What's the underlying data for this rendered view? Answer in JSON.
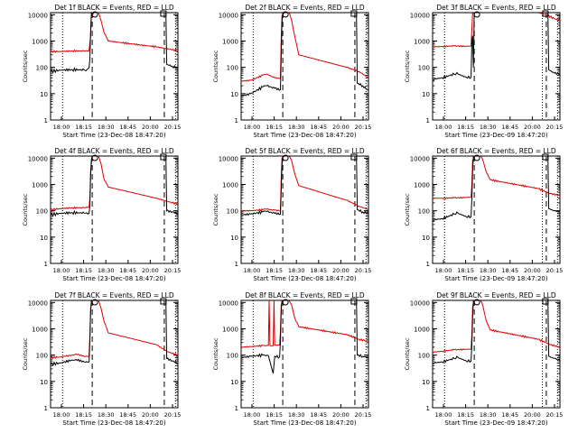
{
  "chart_data": [
    {
      "type": "line",
      "title": "Det 1f BLACK = Events, RED = LLD",
      "xlabel": "Start Time (23-Dec-08 18:47:20)",
      "ylabel": "Counts/sec",
      "yscale": "log",
      "ylim": [
        1,
        12000
      ],
      "xlim": [
        "17:48",
        "20:27"
      ],
      "xticks": [
        "18:00",
        "18:15",
        "18:30",
        "18:45",
        "20:00",
        "20:15"
      ],
      "yticks": [
        "1",
        "10",
        "100",
        "1000",
        "10000"
      ],
      "dotted_lines": [
        "18:03",
        "20:24"
      ],
      "dashed_lines": [
        "18:40",
        "20:10"
      ],
      "series": [
        {
          "name": "BLACK",
          "color": "#000000",
          "x": [
            "17:48",
            "18:00",
            "18:15",
            "18:30",
            "18:34",
            "18:36",
            "18:37",
            "18:38",
            "18:39",
            "18:40",
            "18:42",
            "18:45",
            "18:50",
            "19:20",
            "20:00",
            "20:12",
            "20:13",
            "20:20",
            "20:27"
          ],
          "y": [
            70,
            78,
            82,
            80,
            85,
            95,
            200,
            2000,
            12000,
            12000,
            12000,
            12000,
            12000,
            12000,
            12000,
            12000,
            130,
            110,
            95
          ]
        },
        {
          "name": "RED",
          "color": "#dd0000",
          "x": [
            "17:48",
            "18:00",
            "18:15",
            "18:30",
            "18:36",
            "18:38",
            "18:39",
            "18:42",
            "18:45",
            "18:48",
            "18:51",
            "18:55",
            "19:00",
            "20:00",
            "20:15",
            "20:27"
          ],
          "y": [
            400,
            400,
            420,
            420,
            430,
            1500,
            9000,
            12000,
            12000,
            12000,
            6000,
            2000,
            1000,
            600,
            500,
            430
          ]
        }
      ]
    },
    {
      "type": "line",
      "title": "Det 2f BLACK = Events, RED = LLD",
      "xlabel": "Start Time (23-Dec-08 18:47:20)",
      "ylabel": "Counts/sec",
      "yscale": "log",
      "ylim": [
        1,
        12000
      ],
      "xlim": [
        "17:48",
        "20:27"
      ],
      "xticks": [
        "18:00",
        "18:15",
        "18:30",
        "18:45",
        "20:00",
        "20:15"
      ],
      "yticks": [
        "1",
        "10",
        "100",
        "1000",
        "10000"
      ],
      "dotted_lines": [
        "18:03",
        "20:24"
      ],
      "dashed_lines": [
        "18:40",
        "20:10"
      ],
      "series": [
        {
          "name": "BLACK",
          "color": "#000000",
          "x": [
            "17:48",
            "18:00",
            "18:15",
            "18:20",
            "18:30",
            "18:37",
            "18:38",
            "18:39",
            "18:40",
            "18:45",
            "19:20",
            "20:00",
            "20:12",
            "20:13",
            "20:20",
            "20:27"
          ],
          "y": [
            8,
            10,
            18,
            20,
            16,
            14,
            200,
            5000,
            12000,
            12000,
            12000,
            12000,
            12000,
            25,
            20,
            13
          ]
        },
        {
          "name": "RED",
          "color": "#dd0000",
          "x": [
            "17:48",
            "18:00",
            "18:15",
            "18:20",
            "18:30",
            "18:37",
            "18:38",
            "18:39",
            "18:42",
            "18:48",
            "18:51",
            "18:55",
            "19:00",
            "20:00",
            "20:15",
            "20:27"
          ],
          "y": [
            30,
            32,
            50,
            55,
            40,
            38,
            1000,
            9000,
            12000,
            12000,
            6000,
            1500,
            300,
            100,
            70,
            40
          ]
        }
      ]
    },
    {
      "type": "line",
      "title": "Det 3f BLACK = Events, RED = LLD",
      "xlabel": "Start Time (23-Dec-09 18:47:20)",
      "ylabel": "Counts/sec",
      "yscale": "log",
      "ylim": [
        1,
        12000
      ],
      "xlim": [
        "17:48",
        "20:27"
      ],
      "xticks": [
        "18:00",
        "18:15",
        "18:30",
        "18:45",
        "20:00",
        "20:15"
      ],
      "yticks": [
        "1",
        "10",
        "100",
        "1000",
        "10000"
      ],
      "dotted_lines": [
        "18:03",
        "20:05",
        "20:24"
      ],
      "dashed_lines": [
        "18:40",
        "20:10"
      ],
      "series": [
        {
          "name": "BLACK",
          "color": "#000000",
          "x": [
            "17:48",
            "18:00",
            "18:15",
            "18:20",
            "18:30",
            "18:36",
            "18:37",
            "18:38",
            "18:39",
            "18:40",
            "18:45",
            "19:20",
            "20:00",
            "20:12",
            "20:13",
            "20:20",
            "20:27"
          ],
          "y": [
            35,
            40,
            55,
            55,
            42,
            42,
            1000,
            1600,
            100,
            12000,
            12000,
            12000,
            12000,
            12000,
            80,
            60,
            55
          ]
        },
        {
          "name": "RED",
          "color": "#dd0000",
          "x": [
            "17:48",
            "18:00",
            "18:15",
            "18:30",
            "18:36",
            "18:38",
            "18:40",
            "18:45",
            "19:20",
            "20:00",
            "20:10",
            "20:20",
            "20:27"
          ],
          "y": [
            600,
            620,
            650,
            630,
            650,
            11000,
            12000,
            12000,
            12000,
            12000,
            10000,
            7000,
            6000
          ]
        }
      ]
    },
    {
      "type": "line",
      "title": "Det 4f BLACK = Events, RED = LLD",
      "xlabel": "Start Time (23-Dec-08 18:47:20)",
      "ylabel": "Counts/sec",
      "yscale": "log",
      "ylim": [
        1,
        12000
      ],
      "xlim": [
        "17:48",
        "20:27"
      ],
      "xticks": [
        "18:00",
        "18:15",
        "18:30",
        "18:45",
        "20:00",
        "20:15"
      ],
      "yticks": [
        "1",
        "10",
        "100",
        "1000",
        "10000"
      ],
      "dotted_lines": [
        "18:03",
        "20:24"
      ],
      "dashed_lines": [
        "18:40",
        "20:10"
      ],
      "series": [
        {
          "name": "BLACK",
          "color": "#000000",
          "x": [
            "17:48",
            "18:00",
            "18:15",
            "18:30",
            "18:36",
            "18:37",
            "18:38",
            "18:39",
            "18:40",
            "18:45",
            "19:20",
            "20:00",
            "20:12",
            "20:13",
            "20:20",
            "20:27"
          ],
          "y": [
            70,
            80,
            85,
            82,
            80,
            150,
            2000,
            9000,
            12000,
            12000,
            12000,
            12000,
            12000,
            100,
            90,
            80
          ]
        },
        {
          "name": "RED",
          "color": "#dd0000",
          "x": [
            "17:48",
            "18:00",
            "18:15",
            "18:30",
            "18:36",
            "18:37",
            "18:38",
            "18:40",
            "18:45",
            "18:48",
            "18:51",
            "18:55",
            "19:00",
            "20:00",
            "20:15",
            "20:27"
          ],
          "y": [
            110,
            120,
            130,
            130,
            140,
            300,
            3000,
            12000,
            12000,
            12000,
            6000,
            1500,
            800,
            300,
            220,
            180
          ]
        }
      ]
    },
    {
      "type": "line",
      "title": "Det 5f BLACK = Events, RED = LLD",
      "xlabel": "Start Time (23-Dec-08 18:47:20)",
      "ylabel": "Counts/sec",
      "yscale": "log",
      "ylim": [
        1,
        12000
      ],
      "xlim": [
        "17:48",
        "20:27"
      ],
      "xticks": [
        "18:00",
        "18:15",
        "18:30",
        "18:45",
        "20:00",
        "20:15"
      ],
      "yticks": [
        "1",
        "10",
        "100",
        "1000",
        "10000"
      ],
      "dotted_lines": [
        "18:03",
        "20:24"
      ],
      "dashed_lines": [
        "18:40",
        "20:10"
      ],
      "series": [
        {
          "name": "BLACK",
          "color": "#000000",
          "x": [
            "17:48",
            "18:00",
            "18:15",
            "18:20",
            "18:30",
            "18:37",
            "18:38",
            "18:39",
            "18:40",
            "18:45",
            "19:20",
            "20:00",
            "20:12",
            "20:13",
            "20:20",
            "20:27"
          ],
          "y": [
            70,
            75,
            90,
            95,
            80,
            75,
            500,
            5000,
            12000,
            12000,
            12000,
            12000,
            12000,
            110,
            90,
            80
          ]
        },
        {
          "name": "RED",
          "color": "#dd0000",
          "x": [
            "17:48",
            "18:00",
            "18:15",
            "18:20",
            "18:30",
            "18:37",
            "18:38",
            "18:39",
            "18:42",
            "18:48",
            "18:51",
            "18:55",
            "19:00",
            "20:00",
            "20:15",
            "20:27"
          ],
          "y": [
            100,
            100,
            110,
            115,
            105,
            100,
            1500,
            10000,
            12000,
            12000,
            8000,
            2500,
            900,
            250,
            150,
            110
          ]
        }
      ]
    },
    {
      "type": "line",
      "title": "Det 6f BLACK = Events, RED = LLD",
      "xlabel": "Start Time (23-Dec-09 18:47:20)",
      "ylabel": "Counts/sec",
      "yscale": "log",
      "ylim": [
        1,
        12000
      ],
      "xlim": [
        "17:48",
        "20:27"
      ],
      "xticks": [
        "18:00",
        "18:15",
        "18:30",
        "18:45",
        "20:00",
        "20:15"
      ],
      "yticks": [
        "1",
        "10",
        "100",
        "1000",
        "10000"
      ],
      "dotted_lines": [
        "18:03",
        "20:05",
        "20:24"
      ],
      "dashed_lines": [
        "18:40",
        "20:10"
      ],
      "series": [
        {
          "name": "BLACK",
          "color": "#000000",
          "x": [
            "17:48",
            "18:00",
            "18:15",
            "18:20",
            "18:30",
            "18:36",
            "18:37",
            "18:38",
            "18:39",
            "18:45",
            "19:20",
            "20:00",
            "20:12",
            "20:13",
            "20:20",
            "20:27"
          ],
          "y": [
            45,
            50,
            75,
            80,
            60,
            60,
            300,
            3000,
            12000,
            12000,
            12000,
            12000,
            12000,
            120,
            100,
            90
          ]
        },
        {
          "name": "RED",
          "color": "#dd0000",
          "x": [
            "17:48",
            "18:00",
            "18:15",
            "18:30",
            "18:36",
            "18:37",
            "18:38",
            "18:40",
            "18:45",
            "18:48",
            "18:51",
            "18:55",
            "19:00",
            "20:00",
            "20:15",
            "20:27"
          ],
          "y": [
            300,
            300,
            310,
            320,
            330,
            1000,
            8000,
            12000,
            12000,
            12000,
            8000,
            3000,
            1500,
            700,
            450,
            380
          ]
        }
      ]
    },
    {
      "type": "line",
      "title": "Det 7f BLACK = Events, RED = LLD",
      "xlabel": "Start Time (23-Dec-08 18:47:20)",
      "ylabel": "Counts/sec",
      "yscale": "log",
      "ylim": [
        1,
        12000
      ],
      "xlim": [
        "17:48",
        "20:27"
      ],
      "xticks": [
        "18:00",
        "18:15",
        "18:30",
        "18:45",
        "20:00",
        "20:15"
      ],
      "yticks": [
        "1",
        "10",
        "100",
        "1000",
        "10000"
      ],
      "dotted_lines": [
        "18:03",
        "20:24"
      ],
      "dashed_lines": [
        "18:40",
        "20:10"
      ],
      "series": [
        {
          "name": "BLACK",
          "color": "#000000",
          "x": [
            "17:48",
            "18:00",
            "18:15",
            "18:20",
            "18:30",
            "18:36",
            "18:37",
            "18:38",
            "18:39",
            "18:45",
            "19:20",
            "20:00",
            "20:12",
            "20:13",
            "20:20",
            "20:27"
          ],
          "y": [
            45,
            50,
            65,
            68,
            55,
            55,
            300,
            4000,
            12000,
            12000,
            12000,
            12000,
            12000,
            75,
            60,
            50
          ]
        },
        {
          "name": "RED",
          "color": "#dd0000",
          "x": [
            "17:48",
            "18:00",
            "18:15",
            "18:20",
            "18:30",
            "18:36",
            "18:37",
            "18:38",
            "18:40",
            "18:48",
            "18:51",
            "18:55",
            "19:00",
            "20:00",
            "20:15",
            "20:27"
          ],
          "y": [
            80,
            85,
            100,
            110,
            90,
            90,
            500,
            6000,
            12000,
            12000,
            6000,
            1800,
            700,
            250,
            130,
            100
          ]
        }
      ]
    },
    {
      "type": "line",
      "title": "Det 8f BLACK = Events, RED = LLD",
      "xlabel": "Start Time (23-Dec-08 18:47:20)",
      "ylabel": "Counts/sec",
      "yscale": "log",
      "ylim": [
        1,
        12000
      ],
      "xlim": [
        "17:48",
        "20:27"
      ],
      "xticks": [
        "18:00",
        "18:15",
        "18:30",
        "18:45",
        "20:00",
        "20:15"
      ],
      "yticks": [
        "1",
        "10",
        "100",
        "1000",
        "10000"
      ],
      "dotted_lines": [
        "18:03",
        "20:24"
      ],
      "dashed_lines": [
        "18:40",
        "20:10"
      ],
      "series": [
        {
          "name": "BLACK",
          "color": "#000000",
          "x": [
            "17:48",
            "18:00",
            "18:15",
            "18:22",
            "18:28",
            "18:30",
            "18:36",
            "18:37",
            "18:38",
            "18:39",
            "18:45",
            "19:20",
            "20:00",
            "20:12",
            "20:13",
            "20:20",
            "20:27"
          ],
          "y": [
            80,
            90,
            100,
            95,
            20,
            90,
            85,
            300,
            4000,
            12000,
            12000,
            12000,
            12000,
            12000,
            100,
            90,
            80
          ]
        },
        {
          "name": "RED",
          "color": "#dd0000",
          "x": [
            "17:48",
            "18:00",
            "18:15",
            "18:22",
            "18:23",
            "18:24",
            "18:28",
            "18:29",
            "18:30",
            "18:36",
            "18:37",
            "18:38",
            "18:40",
            "18:48",
            "18:51",
            "18:55",
            "19:00",
            "20:00",
            "20:15",
            "20:27"
          ],
          "y": [
            200,
            210,
            230,
            230,
            12000,
            230,
            230,
            12000,
            240,
            240,
            800,
            8000,
            12000,
            12000,
            8000,
            2500,
            1200,
            600,
            400,
            330
          ]
        }
      ]
    },
    {
      "type": "line",
      "title": "Det 9f BLACK = Events, RED = LLD",
      "xlabel": "Start Time (23-Dec-09 18:47:20)",
      "ylabel": "Counts/sec",
      "yscale": "log",
      "ylim": [
        1,
        12000
      ],
      "xlim": [
        "17:48",
        "20:27"
      ],
      "xticks": [
        "18:00",
        "18:15",
        "18:30",
        "18:45",
        "20:00",
        "20:15"
      ],
      "yticks": [
        "1",
        "10",
        "100",
        "1000",
        "10000"
      ],
      "dotted_lines": [
        "18:03",
        "20:05",
        "20:24"
      ],
      "dashed_lines": [
        "18:40",
        "20:10"
      ],
      "series": [
        {
          "name": "BLACK",
          "color": "#000000",
          "x": [
            "17:48",
            "18:00",
            "18:15",
            "18:20",
            "18:30",
            "18:36",
            "18:37",
            "18:38",
            "18:39",
            "18:45",
            "19:20",
            "20:00",
            "20:12",
            "20:13",
            "20:20",
            "20:27"
          ],
          "y": [
            50,
            55,
            75,
            80,
            60,
            60,
            250,
            2500,
            12000,
            12000,
            12000,
            12000,
            12000,
            90,
            75,
            65
          ]
        },
        {
          "name": "RED",
          "color": "#dd0000",
          "x": [
            "17:48",
            "18:00",
            "18:15",
            "18:30",
            "18:36",
            "18:37",
            "18:38",
            "18:40",
            "18:45",
            "18:48",
            "18:51",
            "18:55",
            "19:00",
            "20:00",
            "20:15",
            "20:27"
          ],
          "y": [
            130,
            140,
            160,
            165,
            170,
            600,
            7000,
            12000,
            12000,
            12000,
            7000,
            2000,
            900,
            400,
            250,
            200
          ]
        }
      ]
    }
  ]
}
